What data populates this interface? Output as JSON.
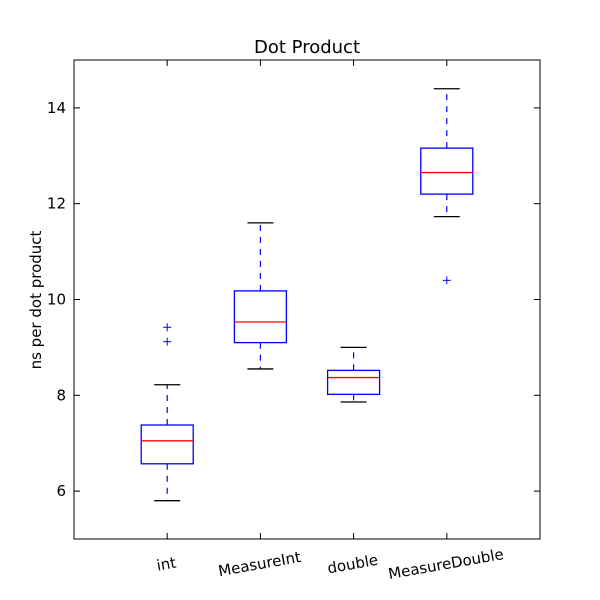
{
  "chart_data": {
    "type": "box",
    "title": "Dot Product",
    "xlabel": "",
    "ylabel": "ns per dot product",
    "ylim": [
      5,
      15
    ],
    "yticks": [
      6,
      8,
      10,
      12,
      14
    ],
    "categories": [
      "int",
      "MeasureInt",
      "double",
      "MeasureDouble"
    ],
    "boxes": [
      {
        "whisker_low": 5.8,
        "q1": 6.57,
        "median": 7.05,
        "q3": 7.38,
        "whisker_high": 8.22,
        "outliers": [
          9.12,
          9.42
        ]
      },
      {
        "whisker_low": 8.55,
        "q1": 9.1,
        "median": 9.53,
        "q3": 10.18,
        "whisker_high": 11.6,
        "outliers": []
      },
      {
        "whisker_low": 7.86,
        "q1": 8.02,
        "median": 8.37,
        "q3": 8.52,
        "whisker_high": 9.0,
        "outliers": []
      },
      {
        "whisker_low": 11.73,
        "q1": 12.2,
        "median": 12.65,
        "q3": 13.16,
        "whisker_high": 14.4,
        "outliers": [
          10.4
        ]
      }
    ],
    "colors": {
      "box": "#0000ff",
      "median": "#ff0000",
      "whisker": "#0000ff",
      "cap": "#000000",
      "outlier": "#0000ff"
    },
    "grid": false,
    "legend": "none"
  }
}
